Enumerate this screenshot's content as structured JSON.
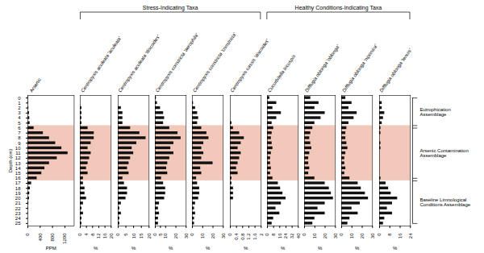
{
  "chart_data": {
    "type": "bar",
    "orientation": "horizontal",
    "y_label": "Depth (cm)",
    "categories": [
      0,
      1,
      2,
      3,
      4,
      5,
      6,
      7,
      8,
      9,
      10,
      11,
      12,
      13,
      14,
      15,
      16,
      17,
      18,
      19,
      20,
      21,
      22,
      23,
      24,
      25
    ],
    "ylim": [
      25.5,
      -0.5
    ],
    "yticks": [
      0,
      1,
      2,
      3,
      4,
      5,
      6,
      7,
      8,
      9,
      10,
      11,
      12,
      13,
      14,
      15,
      16,
      17,
      18,
      19,
      20,
      21,
      22,
      23,
      24,
      25
    ],
    "color": "#111111",
    "series": [
      {
        "name": "Arsenic",
        "x_label": "PPM",
        "xlim": [
          0,
          1500
        ],
        "xticks": [
          0,
          400,
          800,
          1200
        ],
        "values": [
          20,
          20,
          30,
          50,
          60,
          70,
          200,
          500,
          700,
          900,
          1100,
          1300,
          950,
          700,
          550,
          450,
          300,
          120,
          80,
          60,
          50,
          30,
          20,
          15,
          10,
          5
        ]
      },
      {
        "name": "Centropyxis aculeata 'aculeata'",
        "x_label": "%",
        "xlim": [
          0,
          20
        ],
        "xticks": [
          0,
          4,
          8,
          12,
          16,
          20
        ],
        "values": [
          0,
          0,
          1,
          1,
          1,
          1,
          5,
          9,
          9,
          7,
          5,
          7,
          6,
          5,
          4,
          5,
          2,
          2,
          3,
          3,
          4,
          2,
          1,
          2,
          1,
          1
        ]
      },
      {
        "name": "Centropyxis aculeata 'discoides'",
        "x_label": "%",
        "xlim": [
          0,
          20
        ],
        "xticks": [
          0,
          5,
          10,
          15,
          20
        ],
        "values": [
          0,
          0,
          2,
          3,
          3,
          3,
          8,
          14,
          18,
          12,
          9,
          10,
          8,
          7,
          6,
          7,
          3,
          4,
          6,
          6,
          5,
          2,
          1,
          2,
          1,
          1
        ]
      },
      {
        "name": "Centropyxis constricta 'aerophila'",
        "x_label": "%",
        "xlim": [
          0,
          30
        ],
        "xticks": [
          0,
          5,
          10,
          20,
          30
        ],
        "values": [
          1,
          2,
          5,
          8,
          9,
          8,
          14,
          22,
          25,
          18,
          15,
          18,
          14,
          12,
          11,
          12,
          6,
          8,
          10,
          10,
          9,
          4,
          3,
          4,
          3,
          3
        ]
      },
      {
        "name": "Centropyxis constricta 'constricta'",
        "x_label": "%",
        "xlim": [
          0,
          30
        ],
        "xticks": [
          0,
          10,
          20,
          30
        ],
        "values": [
          0,
          1,
          3,
          5,
          6,
          5,
          9,
          14,
          16,
          11,
          9,
          11,
          9,
          20,
          8,
          9,
          4,
          5,
          7,
          7,
          6,
          3,
          2,
          3,
          2,
          2
        ]
      },
      {
        "name": "Centropyxis cassis 'discoides'",
        "x_label": "%",
        "xlim": [
          0,
          2
        ],
        "xticks": [
          0,
          0.4,
          0.8,
          1.2,
          1.6,
          2
        ],
        "values": [
          0,
          0,
          0,
          0,
          0,
          0.1,
          0.2,
          0.6,
          0.9,
          0.7,
          0.5,
          0.7,
          0.6,
          0.5,
          0.4,
          0.5,
          0.1,
          0.1,
          0.2,
          0.2,
          0.2,
          0,
          0,
          0,
          0,
          0
        ]
      },
      {
        "name": "Cucurbitella tricuspis",
        "x_label": "%",
        "xlim": [
          0,
          40
        ],
        "xticks": [
          0,
          8,
          16,
          24,
          32,
          40
        ],
        "values": [
          3,
          12,
          7,
          18,
          12,
          6,
          8,
          6,
          5,
          6,
          7,
          5,
          4,
          4,
          5,
          4,
          7,
          14,
          17,
          20,
          24,
          18,
          11,
          16,
          8,
          6
        ]
      },
      {
        "name": "Difflugia oblonga 'oblonga'",
        "x_label": "%",
        "xlim": [
          0,
          30
        ],
        "xticks": [
          0,
          10,
          20,
          30
        ],
        "values": [
          6,
          14,
          10,
          20,
          16,
          10,
          8,
          6,
          5,
          6,
          7,
          5,
          4,
          4,
          5,
          4,
          10,
          20,
          24,
          26,
          28,
          20,
          13,
          20,
          10,
          8
        ]
      },
      {
        "name": "Difflugia oblonga 'niponica'",
        "x_label": "%",
        "xlim": [
          0,
          30
        ],
        "xticks": [
          0,
          10,
          20,
          30
        ],
        "values": [
          4,
          10,
          7,
          15,
          12,
          7,
          5,
          4,
          4,
          5,
          6,
          4,
          3,
          3,
          4,
          3,
          8,
          16,
          19,
          23,
          26,
          18,
          10,
          16,
          8,
          6
        ]
      },
      {
        "name": "Difflugia oblonga 'tenuis'",
        "x_label": "%",
        "xlim": [
          0,
          24
        ],
        "xticks": [
          0,
          8,
          16,
          24
        ],
        "values": [
          0,
          2,
          2,
          4,
          3,
          2,
          1,
          1,
          0,
          1,
          1,
          0,
          0,
          0,
          0,
          0,
          1,
          5,
          7,
          9,
          14,
          10,
          6,
          10,
          4,
          3
        ]
      }
    ],
    "highlight": {
      "ylim": [
        5.5,
        16.5
      ],
      "color": "#f2c8bb"
    },
    "annotations": [
      {
        "text": "Eutrophication\nAssemblage",
        "ylim": [
          0,
          5.5
        ]
      },
      {
        "text": "Arsenic Contamination\nAssemblage",
        "ylim": [
          6,
          16
        ]
      },
      {
        "text": "Baseline Limnological\nConditions Assemblage",
        "ylim": [
          16.5,
          25
        ]
      }
    ],
    "groups": [
      {
        "label": "Stress-Indicating Taxa",
        "series": [
          "Centropyxis aculeata 'aculeata'",
          "Centropyxis cassis 'discoides'"
        ]
      },
      {
        "label": "Healthy Conditions-Indicating Taxa",
        "series": [
          "Cucurbitella tricuspis",
          "Difflugia oblonga 'tenuis'"
        ]
      }
    ]
  }
}
